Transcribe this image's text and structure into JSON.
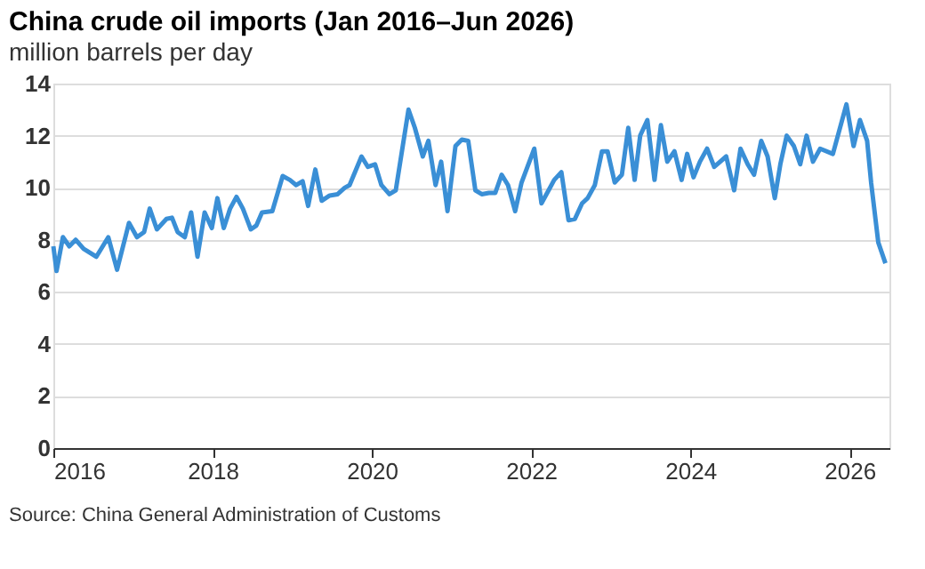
{
  "chart_data": {
    "type": "line",
    "title": "China crude oil imports (Jan 2016–Jun 2026)",
    "subtitle": "million barrels per day",
    "annotations": [
      "Source: China General Administration of Customs"
    ],
    "series": [
      {
        "color": "#3a8fd6",
        "x": [
          2016.0,
          2016.04,
          2016.12,
          2016.2,
          2016.28,
          2016.38,
          2016.54,
          2016.69,
          2016.8,
          2016.95,
          2017.05,
          2017.14,
          2017.21,
          2017.3,
          2017.42,
          2017.49,
          2017.56,
          2017.65,
          2017.73,
          2017.81,
          2017.9,
          2017.99,
          2018.06,
          2018.14,
          2018.22,
          2018.3,
          2018.38,
          2018.48,
          2018.55,
          2018.62,
          2018.75,
          2018.88,
          2018.97,
          2019.05,
          2019.13,
          2019.2,
          2019.29,
          2019.37,
          2019.47,
          2019.57,
          2019.66,
          2019.72,
          2019.87,
          2019.95,
          2020.04,
          2020.12,
          2020.22,
          2020.3,
          2020.46,
          2020.54,
          2020.64,
          2020.71,
          2020.8,
          2020.87,
          2020.95,
          2021.05,
          2021.13,
          2021.21,
          2021.3,
          2021.38,
          2021.47,
          2021.55,
          2021.63,
          2021.71,
          2021.8,
          2021.88,
          2022.04,
          2022.13,
          2022.22,
          2022.29,
          2022.38,
          2022.47,
          2022.55,
          2022.64,
          2022.71,
          2022.8,
          2022.89,
          2022.96,
          2023.05,
          2023.14,
          2023.22,
          2023.3,
          2023.37,
          2023.46,
          2023.55,
          2023.63,
          2023.71,
          2023.8,
          2023.89,
          2023.96,
          2024.04,
          2024.12,
          2024.21,
          2024.3,
          2024.45,
          2024.55,
          2024.63,
          2024.72,
          2024.8,
          2024.89,
          2024.97,
          2025.06,
          2025.13,
          2025.21,
          2025.3,
          2025.38,
          2025.46,
          2025.54,
          2025.63,
          2025.79,
          2025.96,
          2026.05,
          2026.13,
          2026.22,
          2026.27,
          2026.36,
          2026.45
        ],
        "values": [
          7.75,
          6.8,
          8.1,
          7.75,
          8.0,
          7.65,
          7.35,
          8.1,
          6.85,
          8.65,
          8.1,
          8.3,
          9.2,
          8.4,
          8.8,
          8.85,
          8.3,
          8.1,
          9.05,
          7.35,
          9.05,
          8.45,
          9.6,
          8.45,
          9.2,
          9.65,
          9.2,
          8.4,
          8.55,
          9.05,
          9.1,
          10.45,
          10.3,
          10.1,
          10.25,
          9.3,
          10.7,
          9.5,
          9.7,
          9.75,
          10.0,
          10.1,
          11.2,
          10.8,
          10.9,
          10.1,
          9.75,
          9.9,
          13.0,
          12.3,
          11.2,
          11.8,
          10.1,
          11.0,
          9.1,
          11.6,
          11.85,
          11.8,
          9.9,
          9.75,
          9.8,
          9.8,
          10.5,
          10.1,
          9.1,
          10.2,
          11.5,
          9.4,
          9.9,
          10.3,
          10.6,
          8.75,
          8.8,
          9.4,
          9.6,
          10.1,
          11.4,
          11.4,
          10.2,
          10.5,
          12.3,
          10.3,
          12.0,
          12.6,
          10.3,
          12.4,
          11.0,
          11.4,
          10.3,
          11.3,
          10.4,
          11.0,
          11.5,
          10.8,
          11.2,
          9.9,
          11.5,
          10.9,
          10.5,
          11.8,
          11.2,
          9.6,
          10.9,
          12.0,
          11.6,
          10.9,
          12.0,
          11.0,
          11.5,
          11.3,
          13.2,
          11.6,
          12.6,
          11.8,
          10.2,
          7.9,
          7.1
        ]
      }
    ],
    "xlim": [
      2016,
      2026.5
    ],
    "xticks": [
      2016,
      2018,
      2020,
      2022,
      2024,
      2026
    ],
    "ylim": [
      0,
      14
    ],
    "yticks": [
      0,
      2,
      4,
      6,
      8,
      10,
      12,
      14
    ],
    "grid": "y",
    "line_style": "solid",
    "marker": "none"
  }
}
